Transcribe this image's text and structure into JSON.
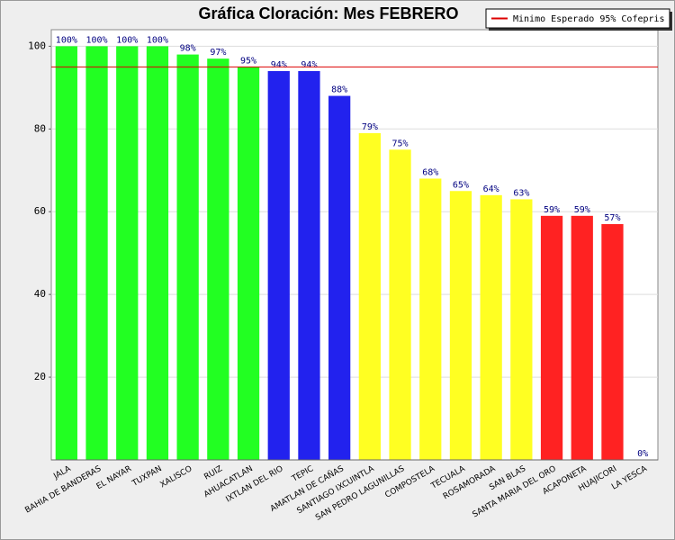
{
  "chart_data": {
    "type": "bar",
    "title": "Gráfica Cloración: Mes FEBRERO",
    "categories": [
      "JALA",
      "BAHIA DE BANDERAS",
      "EL NAYAR",
      "TUXPAN",
      "XALISCO",
      "RUIZ",
      "AHUACATLAN",
      "IXTLAN DEL RIO",
      "TEPIC",
      "AMATLAN DE CAÑAS",
      "SANTIAGO IXCUINTLA",
      "SAN PEDRO LAGUNILLAS",
      "COMPOSTELA",
      "TECUALA",
      "ROSAMORADA",
      "SAN BLAS",
      "SANTA MARIA DEL ORO",
      "ACAPONETA",
      "HUAJICORI",
      "LA YESCA"
    ],
    "values": [
      100,
      100,
      100,
      100,
      98,
      97,
      95,
      94,
      94,
      88,
      79,
      75,
      68,
      65,
      64,
      63,
      59,
      59,
      57,
      0
    ],
    "value_labels": [
      "100%",
      "100%",
      "100%",
      "100%",
      "98%",
      "97%",
      "95%",
      "94%",
      "94%",
      "88%",
      "79%",
      "75%",
      "68%",
      "65%",
      "64%",
      "63%",
      "59%",
      "59%",
      "57%",
      "0%"
    ],
    "colors": [
      "#22ff22",
      "#22ff22",
      "#22ff22",
      "#22ff22",
      "#22ff22",
      "#22ff22",
      "#22ff22",
      "#2222ee",
      "#2222ee",
      "#2222ee",
      "#ffff22",
      "#ffff22",
      "#ffff22",
      "#ffff22",
      "#ffff22",
      "#ffff22",
      "#ff2222",
      "#ff2222",
      "#ff2222",
      "#ff2222"
    ],
    "reference_line": {
      "value": 95,
      "label": "Minimo Esperado 95% Cofepris",
      "color": "#dd0000"
    },
    "ylim": [
      0,
      104
    ],
    "yticks": [
      20,
      40,
      60,
      80,
      100
    ],
    "grid": true,
    "legend": "top-right"
  }
}
